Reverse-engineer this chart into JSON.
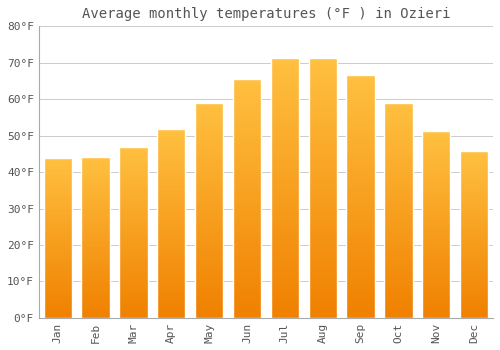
{
  "title": "Average monthly temperatures (°F ) in Ozieri",
  "months": [
    "Jan",
    "Feb",
    "Mar",
    "Apr",
    "May",
    "Jun",
    "Jul",
    "Aug",
    "Sep",
    "Oct",
    "Nov",
    "Dec"
  ],
  "values": [
    44.0,
    44.2,
    47.0,
    51.8,
    59.0,
    65.5,
    71.2,
    71.2,
    66.5,
    59.0,
    51.2,
    45.7
  ],
  "bar_color_top": "#FFB733",
  "bar_color_bottom": "#F08000",
  "bar_edge_color": "#FFFFFF",
  "background_color": "#FFFFFF",
  "grid_color": "#cccccc",
  "text_color": "#555555",
  "title_fontsize": 10,
  "tick_fontsize": 8,
  "ylim": [
    0,
    80
  ],
  "yticks": [
    0,
    10,
    20,
    30,
    40,
    50,
    60,
    70,
    80
  ]
}
